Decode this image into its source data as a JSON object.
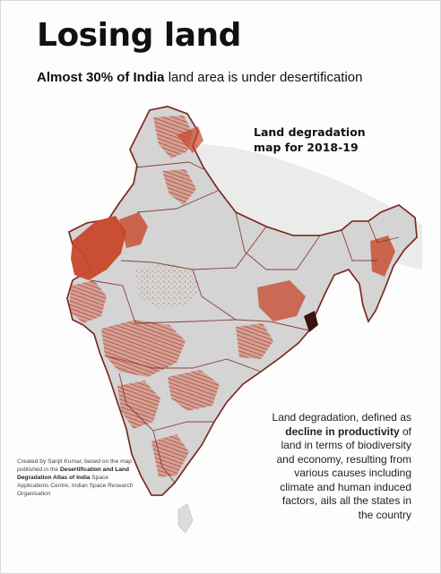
{
  "title": "Losing land",
  "subtitle": {
    "bold": "Almost 30% of India",
    "rest": " land area is under desertification"
  },
  "map_label": {
    "line1": "Land degradation",
    "line2": "map for 2018-19"
  },
  "description": {
    "part1": "Land degradation, defined as ",
    "bold": "decline in productivity",
    "part2": " of land in terms of biodiversity and economy, resulting from various causes including climate and human induced factors, ails all the states in the country"
  },
  "credit": {
    "part1": "Created by Sanjit Kumar, based on the map published in the ",
    "bold": "Desertification and Land Degradation Atlas of India",
    "part2": " Space Applications Centre, Indian Space Research Organisation"
  },
  "colors": {
    "degraded": "#c8472a",
    "land": "#d2d2d2",
    "border": "#7a2a22",
    "terrain": "#e4e4e4"
  }
}
